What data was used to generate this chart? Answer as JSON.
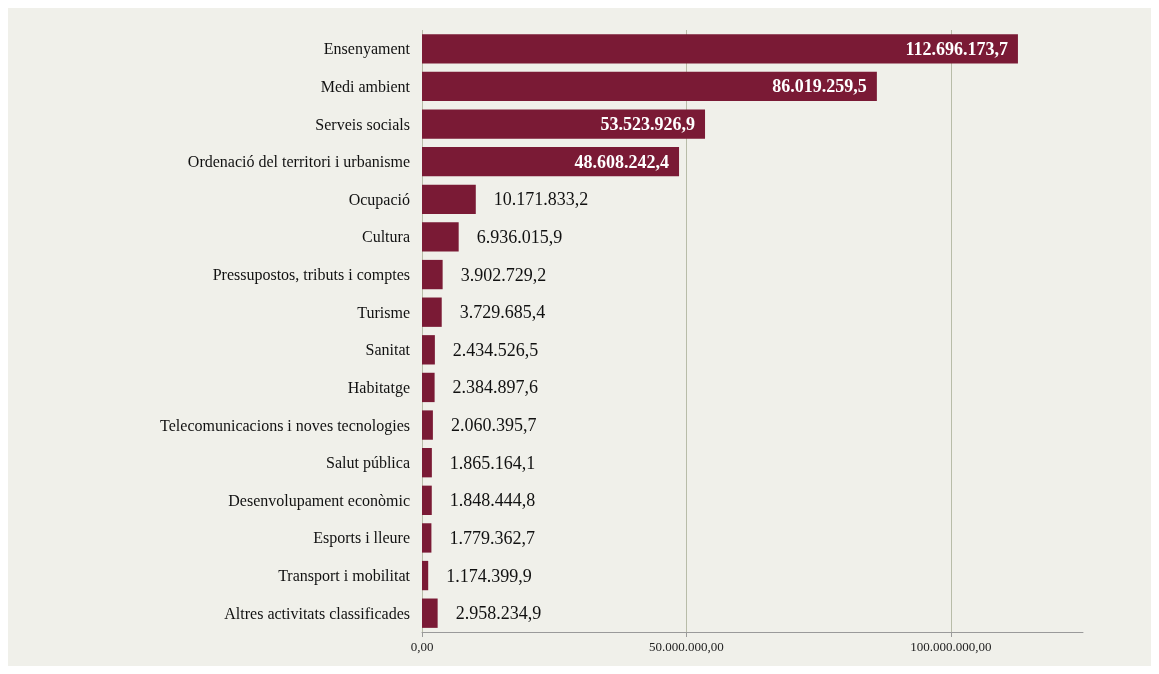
{
  "chart_data": {
    "type": "bar",
    "orientation": "horizontal",
    "categories": [
      "Ensenyament",
      "Medi ambient",
      "Serveis socials",
      "Ordenació del territori i urbanisme",
      "Ocupació",
      "Cultura",
      "Pressupostos, tributs i comptes",
      "Turisme",
      "Sanitat",
      "Habitatge",
      "Telecomunicacions i noves tecnologies",
      "Salut pública",
      "Desenvolupament econòmic",
      "Esports i lleure",
      "Transport i mobilitat",
      "Altres activitats classificades"
    ],
    "values": [
      112696173.7,
      86019259.5,
      53523926.9,
      48608242.4,
      10171833.2,
      6936015.9,
      3902729.2,
      3729685.4,
      2434526.5,
      2384897.6,
      2060395.7,
      1865164.1,
      1848444.8,
      1779362.7,
      1174399.9,
      2958234.9
    ],
    "value_labels": [
      "112.696.173,7",
      "86.019.259,5",
      "53.523.926,9",
      "48.608.242,4",
      "10.171.833,2",
      "6.936.015,9",
      "3.902.729,2",
      "3.729.685,4",
      "2.434.526,5",
      "2.384.897,6",
      "2.060.395,7",
      "1.865.164,1",
      "1.848.444,8",
      "1.779.362,7",
      "1.174.399,9",
      "2.958.234,9"
    ],
    "color": "#7a1a35",
    "xlim": [
      0,
      125000000
    ],
    "xticks": [
      {
        "value": 0,
        "label": "0,00"
      },
      {
        "value": 50000000,
        "label": "50.000.000,00"
      },
      {
        "value": 100000000,
        "label": "100.000.000,00"
      }
    ],
    "grid": "x"
  }
}
